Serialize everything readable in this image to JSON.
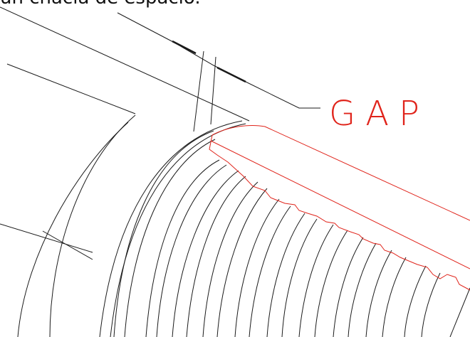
{
  "caption": "un chacla de espacio.",
  "annotation": {
    "label": "GAP"
  },
  "colors": {
    "line": "#1a1a1a",
    "highlight": "#e0241b",
    "background": "#ffffff"
  }
}
